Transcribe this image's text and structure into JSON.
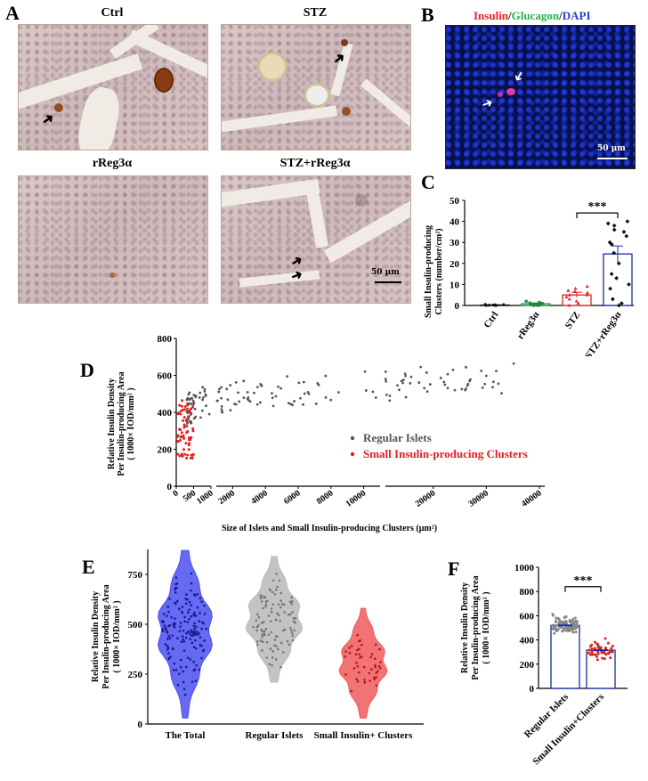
{
  "panel_labels": {
    "a": "A",
    "b": "B",
    "c": "C",
    "d": "D",
    "e": "E",
    "f": "F"
  },
  "panel_a": {
    "titles": [
      "Ctrl",
      "STZ",
      "rReg3α",
      "STZ+rReg3α"
    ],
    "scale_bar": "50 μm"
  },
  "panel_b": {
    "title_parts": [
      {
        "text": "Insulin",
        "color": "#e8202a"
      },
      {
        "text": "/",
        "color": "#111111"
      },
      {
        "text": "Glucagon",
        "color": "#22b34a"
      },
      {
        "text": "/",
        "color": "#111111"
      },
      {
        "text": "DAPI",
        "color": "#2b3bd8"
      }
    ],
    "scale_bar": "50 μm"
  },
  "chart_data": [
    {
      "panel": "C",
      "type": "bar",
      "ylabel_lines": [
        "Small Insulin-producing",
        "Clusters (number/cm²)"
      ],
      "categories": [
        "Ctrl",
        "rReg3α",
        "STZ",
        "STZ+rReg3α"
      ],
      "values": [
        0.2,
        0.8,
        5.0,
        24.5
      ],
      "errors": [
        0.1,
        0.4,
        1.3,
        3.8
      ],
      "ylim": [
        0,
        50
      ],
      "yticks": [
        0,
        10,
        20,
        30,
        40,
        50
      ],
      "significance": "***",
      "bar_colors": [
        "#111111",
        "#1a8a3a",
        "#e02020",
        "#1a2aa8"
      ],
      "points": [
        [
          0,
          0,
          0,
          0.1,
          0.2,
          0.3,
          0.5,
          0.4
        ],
        [
          0,
          0,
          0.5,
          1,
          1.5,
          2,
          0.5,
          1.2,
          0.3
        ],
        [
          0,
          1,
          2,
          3,
          4,
          5,
          6,
          7,
          8,
          9,
          5,
          6.5
        ],
        [
          0,
          1,
          3,
          8,
          10,
          13,
          15,
          20,
          25,
          30,
          35,
          36,
          38,
          39,
          40,
          29,
          33
        ]
      ]
    },
    {
      "panel": "D",
      "type": "scatter",
      "ylabel_lines": [
        "Relative Insulin Density",
        "Per Insulin-producing Area",
        "( 1000× IOD/mm² )"
      ],
      "xlabel": "Size of Islets and Small Insulin-producing Clusters (μm²)",
      "yticks": [
        0,
        200,
        400,
        600,
        800
      ],
      "xticks": [
        "0",
        "500",
        "1000",
        "2000",
        "4000",
        "6000",
        "8000",
        "10000",
        "20000",
        "30000",
        "40000"
      ],
      "series": [
        {
          "name": "Regular Islets",
          "color": "#555555"
        },
        {
          "name": "Small Insulin-producing Clusters",
          "color": "#e02020"
        }
      ]
    },
    {
      "panel": "E",
      "type": "violin",
      "ylabel_lines": [
        "Relative Insulin Density",
        "Per Insulin-producing Area",
        "( 1000× IOD/mm² )"
      ],
      "categories": [
        "The Total",
        "Regular Islets",
        "Small Insulin+ Clusters"
      ],
      "yticks": [
        0,
        250,
        500,
        750
      ],
      "ylim": [
        0,
        875
      ],
      "colors": [
        "#4b4ff0",
        "#b9b9b9",
        "#f05a5a"
      ],
      "ranges": [
        [
          30,
          870
        ],
        [
          210,
          840
        ],
        [
          30,
          580
        ]
      ],
      "medians": [
        470,
        520,
        300
      ]
    },
    {
      "panel": "F",
      "type": "bar",
      "ylabel_lines": [
        "Relative Insulin Density",
        "Per Insulin-producing Area",
        "( 1000× IOD/mm² )"
      ],
      "categories": [
        "Regular Islets",
        "Small Insulin+Clusters"
      ],
      "values": [
        520,
        315
      ],
      "errors": [
        12,
        18
      ],
      "ylim": [
        0,
        1000
      ],
      "yticks": [
        0,
        200,
        400,
        600,
        800,
        1000
      ],
      "significance": "***",
      "point_colors": [
        "#888888",
        "#e02020"
      ],
      "bar_edge": "#1a2aa8"
    }
  ]
}
